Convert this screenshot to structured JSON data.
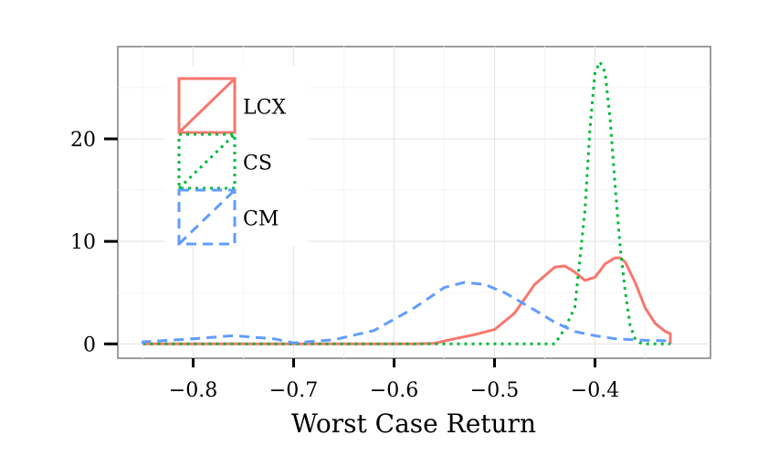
{
  "chart_data": {
    "type": "area",
    "title": "",
    "xlabel": "Worst Case Return",
    "ylabel": "",
    "xlim": [
      -0.875,
      -0.285
    ],
    "ylim": [
      -1.4,
      29.0
    ],
    "x_ticks": [
      -0.8,
      -0.7,
      -0.6,
      -0.5,
      -0.4
    ],
    "x_tick_labels": [
      "−0.8",
      "−0.7",
      "−0.6",
      "−0.5",
      "−0.4"
    ],
    "y_ticks": [
      0,
      10,
      20
    ],
    "y_tick_labels": [
      "0",
      "10",
      "20"
    ],
    "grid": true,
    "legend_position": "top-left",
    "series": [
      {
        "name": "LCX",
        "color": "#F8766D",
        "line_style": "solid",
        "x": [
          -0.85,
          -0.58,
          -0.56,
          -0.54,
          -0.52,
          -0.5,
          -0.48,
          -0.46,
          -0.44,
          -0.43,
          -0.42,
          -0.41,
          -0.4,
          -0.39,
          -0.38,
          -0.375,
          -0.37,
          -0.36,
          -0.35,
          -0.34,
          -0.33,
          -0.325
        ],
        "y": [
          0,
          0,
          0.05,
          0.5,
          0.9,
          1.4,
          3.0,
          5.8,
          7.5,
          7.6,
          7.0,
          6.2,
          6.5,
          7.8,
          8.4,
          8.4,
          8.0,
          6.0,
          3.5,
          2.0,
          1.2,
          1.0
        ]
      },
      {
        "name": "CS",
        "color": "#00BA38",
        "line_style": "dotted",
        "x": [
          -0.85,
          -0.44,
          -0.43,
          -0.42,
          -0.41,
          -0.405,
          -0.4,
          -0.395,
          -0.39,
          -0.385,
          -0.38,
          -0.375,
          -0.37,
          -0.365,
          -0.36,
          -0.355,
          -0.35,
          -0.325
        ],
        "y": [
          0,
          0,
          1.5,
          3.6,
          13.0,
          21.0,
          26.5,
          27.5,
          26.5,
          22.0,
          15.5,
          9.5,
          5.2,
          1.8,
          0.5,
          0.1,
          0,
          0
        ]
      },
      {
        "name": "CM",
        "color": "#619CFF",
        "line_style": "dashed",
        "x": [
          -0.85,
          -0.8,
          -0.76,
          -0.72,
          -0.7,
          -0.66,
          -0.62,
          -0.58,
          -0.55,
          -0.53,
          -0.51,
          -0.49,
          -0.46,
          -0.44,
          -0.42,
          -0.4,
          -0.38,
          -0.35,
          -0.325
        ],
        "y": [
          0.2,
          0.5,
          0.8,
          0.5,
          0.1,
          0.4,
          1.3,
          3.5,
          5.5,
          6.0,
          5.8,
          5.0,
          3.3,
          2.1,
          1.2,
          0.8,
          0.5,
          0.35,
          0.3
        ]
      }
    ]
  }
}
